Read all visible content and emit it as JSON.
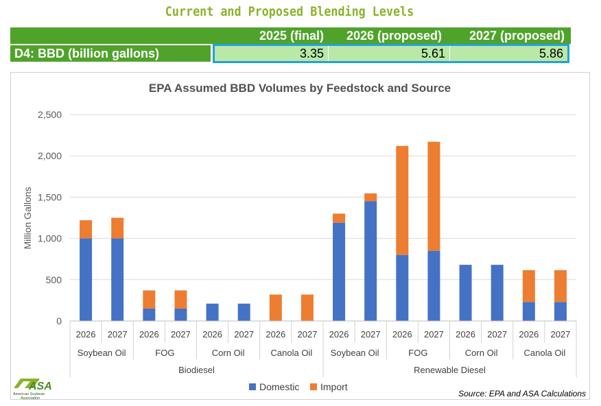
{
  "page_title": "Current and Proposed Blending Levels",
  "table": {
    "headers": [
      "2025 (final)",
      "2026 (proposed)",
      "2027 (proposed)"
    ],
    "row_label": "D4: BBD (billion gallons)",
    "values": [
      "3.35",
      "5.61",
      "5.86"
    ]
  },
  "chart_data": {
    "type": "bar",
    "stacked": true,
    "title": "EPA Assumed BBD Volumes by Feedstock and Source",
    "ylabel": "Million Gallons",
    "xlabel": "",
    "ylim": [
      0,
      2500
    ],
    "yticks": [
      0,
      500,
      1000,
      1500,
      2000,
      2500
    ],
    "ytick_labels": [
      "0",
      "500",
      "1,000",
      "1,500",
      "2,000",
      "2,500"
    ],
    "grid": true,
    "legend_position": "bottom",
    "categories": [
      "2026",
      "2027",
      "2026",
      "2027",
      "2026",
      "2027",
      "2026",
      "2027",
      "2026",
      "2027",
      "2026",
      "2027",
      "2026",
      "2027",
      "2026",
      "2027"
    ],
    "feedstock_groups": [
      {
        "label": "Soybean Oil",
        "span": 2
      },
      {
        "label": "FOG",
        "span": 2
      },
      {
        "label": "Corn Oil",
        "span": 2
      },
      {
        "label": "Canola Oil",
        "span": 2
      },
      {
        "label": "Soybean Oil",
        "span": 2
      },
      {
        "label": "FOG",
        "span": 2
      },
      {
        "label": "Corn Oil",
        "span": 2
      },
      {
        "label": "Canola Oil",
        "span": 2
      }
    ],
    "fuel_groups": [
      {
        "label": "Biodiesel",
        "span": 8
      },
      {
        "label": "Renewable Diesel",
        "span": 8
      }
    ],
    "series": [
      {
        "name": "Domestic",
        "color": "#4472c4",
        "values": [
          1000,
          1000,
          150,
          150,
          210,
          210,
          0,
          0,
          1190,
          1450,
          800,
          850,
          680,
          680,
          230,
          230
        ]
      },
      {
        "name": "Import",
        "color": "#ed7d31",
        "values": [
          220,
          250,
          220,
          220,
          0,
          0,
          320,
          320,
          110,
          95,
          1320,
          1320,
          0,
          0,
          385,
          385
        ]
      }
    ]
  },
  "logo": {
    "text": "ASA",
    "subtitle": "American Soybean Association"
  },
  "source_note": "Source: EPA and ASA Calculations",
  "colors": {
    "table_green": "#4fa32a",
    "table_light_green": "#b9e8a7",
    "highlight_blue": "#1fa2de",
    "title_green": "#8bb22a"
  }
}
